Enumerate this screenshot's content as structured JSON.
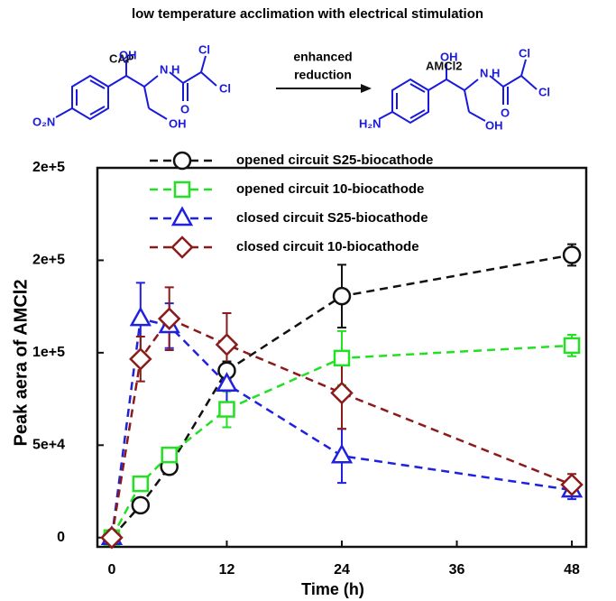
{
  "header": {
    "title": "low temperature acclimation with electrical stimulation",
    "left_name": "CAP",
    "left_oh1": "OH",
    "left_nh": "N H",
    "left_cl1": "Cl",
    "left_cl2": "Cl",
    "left_no2": "O₂N",
    "left_o": "O",
    "left_oh2": "OH",
    "arrow_top": "enhanced",
    "arrow_bottom": "reduction",
    "right_name": "AMCl2",
    "right_oh1": "OH",
    "right_nh": "N H",
    "right_cl1": "Cl",
    "right_cl2": "Cl",
    "right_nh2": "H₂N",
    "right_o": "O",
    "right_oh2": "OH"
  },
  "chart_data": {
    "type": "line",
    "xlabel": "Time (h)",
    "ylabel": "Peak aera of AMCl2",
    "x": [
      0,
      3,
      6,
      12,
      24,
      48
    ],
    "xlim": [
      -1.5,
      49.5
    ],
    "xticks": [
      0,
      12,
      24,
      36,
      48
    ],
    "ylim": [
      -5000,
      200000
    ],
    "yticks": [
      0,
      {
        "value": 50000,
        "label": "5e+4"
      },
      {
        "value": 100000,
        "label": "1e+5"
      },
      {
        "value": 150000,
        "label": "2e+5"
      },
      {
        "value": 200000,
        "label": "2e+5"
      }
    ],
    "legend": "top-left",
    "series": [
      {
        "name": "opened circuit S25-biocathode",
        "color": "#111111",
        "marker": "circle",
        "values": [
          0,
          17500,
          38300,
          90300,
          130600,
          152900
        ],
        "errors": [
          0,
          3000,
          4000,
          5000,
          17000,
          5800
        ]
      },
      {
        "name": "opened circuit 10-biocathode",
        "color": "#22e022",
        "marker": "square",
        "values": [
          0,
          29100,
          44700,
          69400,
          97100,
          103900
        ],
        "errors": [
          0,
          3000,
          3000,
          9700,
          14600,
          5800
        ]
      },
      {
        "name": "closed circuit S25-biocathode",
        "color": "#2020e0",
        "marker": "triangle",
        "values": [
          0,
          118400,
          114600,
          83000,
          44200,
          25700
        ],
        "errors": [
          0,
          19400,
          12100,
          9700,
          14600,
          4900
        ]
      },
      {
        "name": "closed circuit 10-biocathode",
        "color": "#8b1a1a",
        "marker": "diamond",
        "values": [
          0,
          96600,
          118400,
          104400,
          78200,
          28600
        ],
        "errors": [
          0,
          12100,
          17000,
          17000,
          19400,
          5800
        ]
      }
    ]
  }
}
